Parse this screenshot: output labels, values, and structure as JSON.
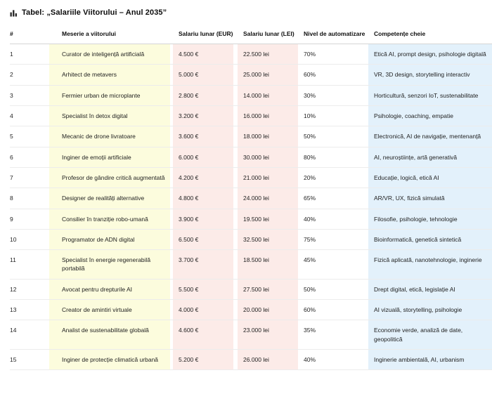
{
  "title": {
    "icon": "bar-chart-icon",
    "text": "Tabel: „Salariile Viitorului – Anul 2035”"
  },
  "colors": {
    "job_column_bg": "#fcfcdd",
    "salary_column_bg": "#fcebe8",
    "skills_column_bg": "#e3f1fb",
    "icon_color": "#2b2b2b"
  },
  "table": {
    "columns": [
      "#",
      "Meserie a viitorului",
      "Salariu lunar (EUR)",
      "Salariu lunar (LEI)",
      "Nivel de automatizare",
      "Competențe cheie"
    ],
    "rows": [
      {
        "num": "1",
        "job": "Curator de inteligență artificială",
        "eur": "4.500 €",
        "lei": "22.500 lei",
        "automation": "70%",
        "skills": "Etică AI, prompt design, psihologie digitală"
      },
      {
        "num": "2",
        "job": "Arhitect de metavers",
        "eur": "5.000 €",
        "lei": "25.000 lei",
        "automation": "60%",
        "skills": "VR, 3D design, storytelling interactiv"
      },
      {
        "num": "3",
        "job": "Fermier urban de microplante",
        "eur": "2.800 €",
        "lei": "14.000 lei",
        "automation": "30%",
        "skills": "Horticultură, senzori IoT, sustenabilitate"
      },
      {
        "num": "4",
        "job": "Specialist în detox digital",
        "eur": "3.200 €",
        "lei": "16.000 lei",
        "automation": "10%",
        "skills": "Psihologie, coaching, empatie"
      },
      {
        "num": "5",
        "job": "Mecanic de drone livratoare",
        "eur": "3.600 €",
        "lei": "18.000 lei",
        "automation": "50%",
        "skills": "Electronică, AI de navigație, mentenanță"
      },
      {
        "num": "6",
        "job": "Inginer de emoții artificiale",
        "eur": "6.000 €",
        "lei": "30.000 lei",
        "automation": "80%",
        "skills": "AI, neuroștiințe, artă generativă"
      },
      {
        "num": "7",
        "job": "Profesor de gândire critică augmentată",
        "eur": "4.200 €",
        "lei": "21.000 lei",
        "automation": "20%",
        "skills": "Educație, logică, etică AI"
      },
      {
        "num": "8",
        "job": "Designer de realități alternative",
        "eur": "4.800 €",
        "lei": "24.000 lei",
        "automation": "65%",
        "skills": "AR/VR, UX, fizică simulată"
      },
      {
        "num": "9",
        "job": "Consilier în tranziție robo-umană",
        "eur": "3.900 €",
        "lei": "19.500 lei",
        "automation": "40%",
        "skills": "Filosofie, psihologie, tehnologie"
      },
      {
        "num": "10",
        "job": "Programator de ADN digital",
        "eur": "6.500 €",
        "lei": "32.500 lei",
        "automation": "75%",
        "skills": "Bioinformatică, genetică sintetică"
      },
      {
        "num": "11",
        "job": "Specialist în energie regenerabilă portabilă",
        "eur": "3.700 €",
        "lei": "18.500 lei",
        "automation": "45%",
        "skills": "Fizică aplicată, nanotehnologie, inginerie"
      },
      {
        "num": "12",
        "job": "Avocat pentru drepturile AI",
        "eur": "5.500 €",
        "lei": "27.500 lei",
        "automation": "50%",
        "skills": "Drept digital, etică, legislație AI"
      },
      {
        "num": "13",
        "job": "Creator de amintiri virtuale",
        "eur": "4.000 €",
        "lei": "20.000 lei",
        "automation": "60%",
        "skills": "AI vizuală, storytelling, psihologie"
      },
      {
        "num": "14",
        "job": "Analist de sustenabilitate globală",
        "eur": "4.600 €",
        "lei": "23.000 lei",
        "automation": "35%",
        "skills": "Economie verde, analiză de date, geopolitică"
      },
      {
        "num": "15",
        "job": "Inginer de protecție climatică urbană",
        "eur": "5.200 €",
        "lei": "26.000 lei",
        "automation": "40%",
        "skills": "Inginerie ambientală, AI, urbanism"
      }
    ]
  }
}
